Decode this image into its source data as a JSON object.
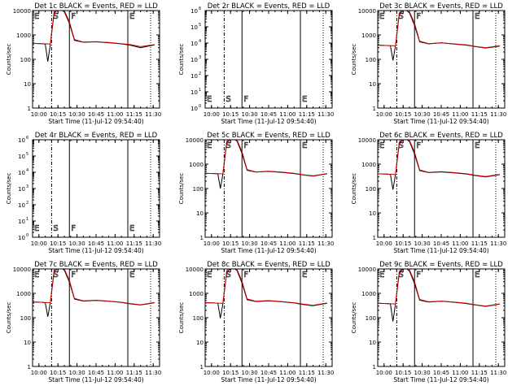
{
  "chart_data": [
    {
      "type": "line",
      "title": "Det 1c BLACK = Events, RED = LLD",
      "ylabel": "Counts/sec",
      "xlabel": "Start Time (11-Jul-12 09:54:40)",
      "x_ticks": [
        "10:00",
        "10:15",
        "10:30",
        "10:45",
        "11:00",
        "11:15",
        "11:30"
      ],
      "y_ticks": [
        "1",
        "10",
        "100",
        "1000",
        "10000"
      ],
      "ylim": [
        1,
        10000
      ],
      "y_scale": "log",
      "has_data": true,
      "markers": [
        {
          "label": "E",
          "time": "09:55"
        },
        {
          "label": "S",
          "time": "10:10"
        },
        {
          "label": "F",
          "time": "10:24"
        },
        {
          "label": "E",
          "time": "11:10"
        }
      ],
      "series": [
        {
          "color": "#000000",
          "x": [
            "09:55",
            "10:02",
            "10:05",
            "10:07",
            "10:09",
            "10:12",
            "10:16",
            "10:20",
            "10:24",
            "10:28",
            "10:35",
            "10:45",
            "10:55",
            "11:05",
            "11:12",
            "11:20",
            "11:31"
          ],
          "values": [
            450,
            440,
            420,
            80,
            400,
            8000,
            12000,
            9000,
            3000,
            600,
            500,
            520,
            480,
            430,
            380,
            300,
            390
          ]
        },
        {
          "color": "#cc0000",
          "x": [
            "09:55",
            "10:02",
            "10:07",
            "10:09",
            "10:12",
            "10:16",
            "10:20",
            "10:24",
            "10:28",
            "10:35",
            "10:45",
            "10:55",
            "11:05",
            "11:12",
            "11:20",
            "11:31"
          ],
          "values": [
            450,
            440,
            430,
            420,
            9000,
            15000,
            10000,
            3500,
            650,
            510,
            530,
            490,
            440,
            400,
            330,
            400
          ]
        }
      ]
    },
    {
      "type": "line",
      "title": "Det 2r BLACK = Events, RED = LLD",
      "ylabel": "Counts/sec",
      "xlabel": "Start Time (11-Jul-12 09:54:40)",
      "x_ticks": [
        "10:00",
        "10:15",
        "10:30",
        "10:45",
        "11:00",
        "11:15",
        "11:30"
      ],
      "y_ticks": [
        "10^0",
        "10^1",
        "10^2",
        "10^3",
        "10^4",
        "10^5",
        "10^6"
      ],
      "ylim": [
        1,
        1000000
      ],
      "y_scale": "log",
      "has_data": false,
      "markers": [
        {
          "label": "E",
          "time": "09:55"
        },
        {
          "label": "S",
          "time": "10:10"
        },
        {
          "label": "F",
          "time": "10:24"
        },
        {
          "label": "E",
          "time": "11:10"
        }
      ],
      "series": []
    },
    {
      "type": "line",
      "title": "Det 3c BLACK = Events, RED = LLD",
      "ylabel": "Counts/sec",
      "xlabel": "Start Time (11-Jul-12 09:54:40)",
      "x_ticks": [
        "10:00",
        "10:15",
        "10:30",
        "10:45",
        "11:00",
        "11:15",
        "11:30"
      ],
      "y_ticks": [
        "1",
        "10",
        "100",
        "1000",
        "10000"
      ],
      "ylim": [
        1,
        10000
      ],
      "y_scale": "log",
      "has_data": true,
      "markers": [
        {
          "label": "E",
          "time": "09:55"
        },
        {
          "label": "S",
          "time": "10:10"
        },
        {
          "label": "F",
          "time": "10:24"
        },
        {
          "label": "E",
          "time": "11:10"
        }
      ],
      "series": [
        {
          "color": "#000000",
          "x": [
            "09:55",
            "10:02",
            "10:05",
            "10:07",
            "10:09",
            "10:12",
            "10:16",
            "10:20",
            "10:24",
            "10:28",
            "10:35",
            "10:45",
            "10:55",
            "11:05",
            "11:12",
            "11:20",
            "11:31"
          ],
          "values": [
            380,
            370,
            360,
            90,
            350,
            7000,
            12000,
            8000,
            2500,
            520,
            430,
            470,
            420,
            380,
            330,
            290,
            350
          ]
        },
        {
          "color": "#cc0000",
          "x": [
            "09:55",
            "10:02",
            "10:07",
            "10:09",
            "10:12",
            "10:16",
            "10:20",
            "10:24",
            "10:28",
            "10:35",
            "10:45",
            "10:55",
            "11:05",
            "11:12",
            "11:20",
            "11:31"
          ],
          "values": [
            380,
            370,
            360,
            350,
            8000,
            15000,
            9000,
            3000,
            560,
            440,
            480,
            430,
            390,
            340,
            300,
            360
          ]
        }
      ]
    },
    {
      "type": "line",
      "title": "Det 4r BLACK = Events, RED = LLD",
      "ylabel": "Counts/sec",
      "xlabel": "Start Time (11-Jul-12 09:54:40)",
      "x_ticks": [
        "10:00",
        "10:15",
        "10:30",
        "10:45",
        "11:00",
        "11:15",
        "11:30"
      ],
      "y_ticks": [
        "10^0",
        "10^1",
        "10^2",
        "10^3",
        "10^4",
        "10^5",
        "10^6"
      ],
      "ylim": [
        1,
        1000000
      ],
      "y_scale": "log",
      "has_data": false,
      "markers": [
        {
          "label": "E",
          "time": "09:55"
        },
        {
          "label": "S",
          "time": "10:10"
        },
        {
          "label": "F",
          "time": "10:24"
        },
        {
          "label": "E",
          "time": "11:10"
        }
      ],
      "series": []
    },
    {
      "type": "line",
      "title": "Det 5c BLACK = Events, RED = LLD",
      "ylabel": "Counts/sec",
      "xlabel": "Start Time (11-Jul-12 09:54:40)",
      "x_ticks": [
        "10:00",
        "10:15",
        "10:30",
        "10:45",
        "11:00",
        "11:15",
        "11:30"
      ],
      "y_ticks": [
        "1",
        "10",
        "100",
        "1000",
        "10000"
      ],
      "ylim": [
        1,
        10000
      ],
      "y_scale": "log",
      "has_data": true,
      "markers": [
        {
          "label": "E",
          "time": "09:55"
        },
        {
          "label": "S",
          "time": "10:10"
        },
        {
          "label": "F",
          "time": "10:24"
        },
        {
          "label": "E",
          "time": "11:10"
        }
      ],
      "series": [
        {
          "color": "#000000",
          "x": [
            "09:55",
            "10:02",
            "10:05",
            "10:07",
            "10:09",
            "10:12",
            "10:16",
            "10:20",
            "10:24",
            "10:28",
            "10:35",
            "10:45",
            "10:55",
            "11:05",
            "11:12",
            "11:20",
            "11:31"
          ],
          "values": [
            420,
            410,
            400,
            100,
            390,
            7500,
            12000,
            9000,
            2800,
            560,
            470,
            500,
            460,
            410,
            360,
            320,
            400
          ]
        },
        {
          "color": "#cc0000",
          "x": [
            "09:55",
            "10:02",
            "10:07",
            "10:09",
            "10:12",
            "10:16",
            "10:20",
            "10:24",
            "10:28",
            "10:35",
            "10:45",
            "10:55",
            "11:05",
            "11:12",
            "11:20",
            "11:31"
          ],
          "values": [
            420,
            410,
            400,
            395,
            8500,
            15000,
            10000,
            3300,
            600,
            480,
            510,
            470,
            420,
            370,
            330,
            410
          ]
        }
      ]
    },
    {
      "type": "line",
      "title": "Det 6c BLACK = Events, RED = LLD",
      "ylabel": "Counts/sec",
      "xlabel": "Start Time (11-Jul-12 09:54:40)",
      "x_ticks": [
        "10:00",
        "10:15",
        "10:30",
        "10:45",
        "11:00",
        "11:15",
        "11:30"
      ],
      "y_ticks": [
        "1",
        "10",
        "100",
        "1000",
        "10000"
      ],
      "ylim": [
        1,
        10000
      ],
      "y_scale": "log",
      "has_data": true,
      "markers": [
        {
          "label": "E",
          "time": "09:55"
        },
        {
          "label": "S",
          "time": "10:10"
        },
        {
          "label": "F",
          "time": "10:24"
        },
        {
          "label": "E",
          "time": "11:10"
        }
      ],
      "series": [
        {
          "color": "#000000",
          "x": [
            "09:55",
            "10:02",
            "10:05",
            "10:07",
            "10:09",
            "10:12",
            "10:16",
            "10:20",
            "10:24",
            "10:28",
            "10:35",
            "10:45",
            "10:55",
            "11:05",
            "11:12",
            "11:20",
            "11:31"
          ],
          "values": [
            400,
            390,
            380,
            90,
            370,
            7000,
            12000,
            8500,
            2600,
            540,
            450,
            480,
            440,
            390,
            340,
            300,
            370
          ]
        },
        {
          "color": "#cc0000",
          "x": [
            "09:55",
            "10:02",
            "10:07",
            "10:09",
            "10:12",
            "10:16",
            "10:20",
            "10:24",
            "10:28",
            "10:35",
            "10:45",
            "10:55",
            "11:05",
            "11:12",
            "11:20",
            "11:31"
          ],
          "values": [
            400,
            390,
            380,
            375,
            8000,
            15000,
            9500,
            3100,
            580,
            460,
            490,
            450,
            400,
            350,
            310,
            380
          ]
        }
      ]
    },
    {
      "type": "line",
      "title": "Det 7c BLACK = Events, RED = LLD",
      "ylabel": "Counts/sec",
      "xlabel": "Start Time (11-Jul-12 09:54:40)",
      "x_ticks": [
        "10:00",
        "10:15",
        "10:30",
        "10:45",
        "11:00",
        "11:15",
        "11:30"
      ],
      "y_ticks": [
        "1",
        "10",
        "100",
        "1000",
        "10000"
      ],
      "ylim": [
        1,
        10000
      ],
      "y_scale": "log",
      "has_data": true,
      "markers": [
        {
          "label": "E",
          "time": "09:55"
        },
        {
          "label": "S",
          "time": "10:10"
        },
        {
          "label": "F",
          "time": "10:24"
        },
        {
          "label": "E",
          "time": "11:10"
        }
      ],
      "series": [
        {
          "color": "#000000",
          "x": [
            "09:55",
            "10:02",
            "10:05",
            "10:07",
            "10:09",
            "10:12",
            "10:16",
            "10:20",
            "10:24",
            "10:28",
            "10:35",
            "10:45",
            "10:55",
            "11:05",
            "11:12",
            "11:20",
            "11:31"
          ],
          "values": [
            440,
            430,
            410,
            110,
            400,
            7800,
            12000,
            9000,
            2900,
            580,
            480,
            510,
            470,
            420,
            370,
            330,
            410
          ]
        },
        {
          "color": "#cc0000",
          "x": [
            "09:55",
            "10:02",
            "10:07",
            "10:09",
            "10:12",
            "10:16",
            "10:20",
            "10:24",
            "10:28",
            "10:35",
            "10:45",
            "10:55",
            "11:05",
            "11:12",
            "11:20",
            "11:31"
          ],
          "values": [
            440,
            430,
            415,
            410,
            9000,
            15000,
            10000,
            3400,
            620,
            490,
            520,
            480,
            430,
            380,
            340,
            420
          ]
        }
      ]
    },
    {
      "type": "line",
      "title": "Det 8c BLACK = Events, RED = LLD",
      "ylabel": "Counts/sec",
      "xlabel": "Start Time (11-Jul-12 09:54:40)",
      "x_ticks": [
        "10:00",
        "10:15",
        "10:30",
        "10:45",
        "11:00",
        "11:15",
        "11:30"
      ],
      "y_ticks": [
        "1",
        "10",
        "100",
        "1000",
        "10000"
      ],
      "ylim": [
        1,
        10000
      ],
      "y_scale": "log",
      "has_data": true,
      "markers": [
        {
          "label": "E",
          "time": "09:55"
        },
        {
          "label": "S",
          "time": "10:10"
        },
        {
          "label": "F",
          "time": "10:24"
        },
        {
          "label": "E",
          "time": "11:10"
        }
      ],
      "series": [
        {
          "color": "#000000",
          "x": [
            "09:55",
            "10:02",
            "10:05",
            "10:07",
            "10:09",
            "10:12",
            "10:16",
            "10:20",
            "10:24",
            "10:28",
            "10:35",
            "10:45",
            "10:55",
            "11:05",
            "11:12",
            "11:20",
            "11:31"
          ],
          "values": [
            410,
            400,
            390,
            95,
            380,
            7200,
            12000,
            8800,
            2700,
            550,
            460,
            490,
            450,
            400,
            350,
            310,
            390
          ]
        },
        {
          "color": "#cc0000",
          "x": [
            "09:55",
            "10:02",
            "10:07",
            "10:09",
            "10:12",
            "10:16",
            "10:20",
            "10:24",
            "10:28",
            "10:35",
            "10:45",
            "10:55",
            "11:05",
            "11:12",
            "11:20",
            "11:31"
          ],
          "values": [
            410,
            400,
            390,
            385,
            8300,
            15000,
            9800,
            3200,
            590,
            470,
            500,
            460,
            410,
            360,
            320,
            400
          ]
        }
      ]
    },
    {
      "type": "line",
      "title": "Det 9c BLACK = Events, RED = LLD",
      "ylabel": "Counts/sec",
      "xlabel": "Start Time (11-Jul-12 09:54:40)",
      "x_ticks": [
        "10:00",
        "10:15",
        "10:30",
        "10:45",
        "11:00",
        "11:15",
        "11:30"
      ],
      "y_ticks": [
        "1",
        "10",
        "100",
        "1000",
        "10000"
      ],
      "ylim": [
        1,
        10000
      ],
      "y_scale": "log",
      "has_data": true,
      "markers": [
        {
          "label": "E",
          "time": "09:55"
        },
        {
          "label": "S",
          "time": "10:10"
        },
        {
          "label": "F",
          "time": "10:24"
        },
        {
          "label": "E",
          "time": "11:10"
        }
      ],
      "series": [
        {
          "color": "#000000",
          "x": [
            "09:55",
            "10:02",
            "10:05",
            "10:07",
            "10:09",
            "10:12",
            "10:16",
            "10:20",
            "10:24",
            "10:28",
            "10:35",
            "10:45",
            "10:55",
            "11:05",
            "11:12",
            "11:20",
            "11:31"
          ],
          "values": [
            390,
            380,
            370,
            70,
            360,
            6800,
            12000,
            8200,
            2500,
            520,
            440,
            470,
            430,
            380,
            330,
            290,
            360
          ]
        },
        {
          "color": "#cc0000",
          "x": [
            "09:55",
            "10:02",
            "10:07",
            "10:09",
            "10:12",
            "10:16",
            "10:20",
            "10:24",
            "10:28",
            "10:35",
            "10:45",
            "10:55",
            "11:05",
            "11:12",
            "11:20",
            "11:31"
          ],
          "values": [
            390,
            380,
            370,
            365,
            7800,
            15000,
            9200,
            3000,
            560,
            450,
            480,
            440,
            390,
            340,
            300,
            370
          ]
        }
      ]
    }
  ]
}
